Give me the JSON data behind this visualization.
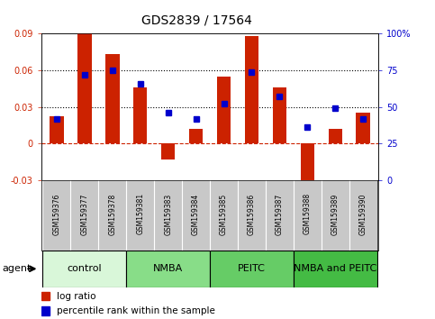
{
  "title": "GDS2839 / 17564",
  "samples": [
    "GSM159376",
    "GSM159377",
    "GSM159378",
    "GSM159381",
    "GSM159383",
    "GSM159384",
    "GSM159385",
    "GSM159386",
    "GSM159387",
    "GSM159388",
    "GSM159389",
    "GSM159390"
  ],
  "log_ratio": [
    0.022,
    0.09,
    0.073,
    0.046,
    -0.013,
    0.012,
    0.055,
    0.088,
    0.046,
    -0.036,
    0.012,
    0.025
  ],
  "percentile_rank": [
    42,
    72,
    75,
    66,
    46,
    42,
    52,
    74,
    57,
    36,
    49,
    42
  ],
  "groups": [
    {
      "label": "control",
      "start": 0,
      "end": 3,
      "color": "#d9f7d9"
    },
    {
      "label": "NMBA",
      "start": 3,
      "end": 6,
      "color": "#88dd88"
    },
    {
      "label": "PEITC",
      "start": 6,
      "end": 9,
      "color": "#66cc66"
    },
    {
      "label": "NMBA and PEITC",
      "start": 9,
      "end": 12,
      "color": "#44bb44"
    }
  ],
  "bar_color": "#cc2200",
  "dot_color": "#0000cc",
  "ylim_left": [
    -0.03,
    0.09
  ],
  "ylim_right": [
    0,
    100
  ],
  "yticks_left": [
    -0.03,
    0,
    0.03,
    0.06,
    0.09
  ],
  "yticks_right": [
    0,
    25,
    50,
    75,
    100
  ],
  "hlines": [
    0.03,
    0.06
  ],
  "zero_line_color": "#cc2200",
  "bar_width": 0.5,
  "agent_label": "agent",
  "legend_log_ratio": "log ratio",
  "legend_percentile": "percentile rank within the sample",
  "background_plot": "#ffffff",
  "background_sample": "#c8c8c8",
  "title_fontsize": 10,
  "tick_fontsize": 7,
  "sample_fontsize": 5.5,
  "group_fontsize": 8
}
